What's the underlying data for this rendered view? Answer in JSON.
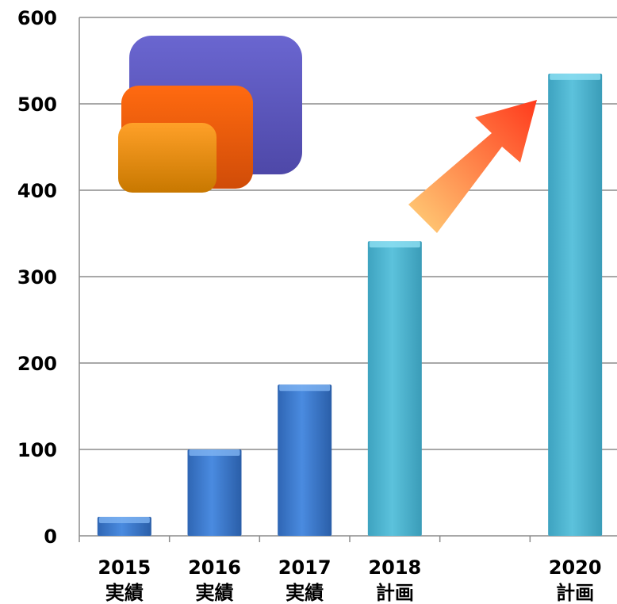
{
  "chart_data": {
    "type": "bar",
    "categories": [
      {
        "year": "2015",
        "status": "実績"
      },
      {
        "year": "2016",
        "status": "実績"
      },
      {
        "year": "2017",
        "status": "実績"
      },
      {
        "year": "2018",
        "status": "計画"
      },
      {
        "year": "",
        "status": ""
      },
      {
        "year": "2020",
        "status": "計画"
      }
    ],
    "values": [
      22,
      100,
      175,
      341,
      null,
      535
    ],
    "ylim": [
      0,
      600
    ],
    "yticks": [
      0,
      100,
      200,
      300,
      400,
      500,
      600
    ],
    "grid": true,
    "colors": {
      "actual": "#3f7fd0",
      "plan": "#56b8d2",
      "gridline": "#8c8c8c",
      "arrow_start": "#ffc86a",
      "arrow_end": "#ff3a1c",
      "decor_purple": "#5b55b8",
      "decor_red": "#e85a10",
      "decor_orange": "#d68a10"
    }
  }
}
